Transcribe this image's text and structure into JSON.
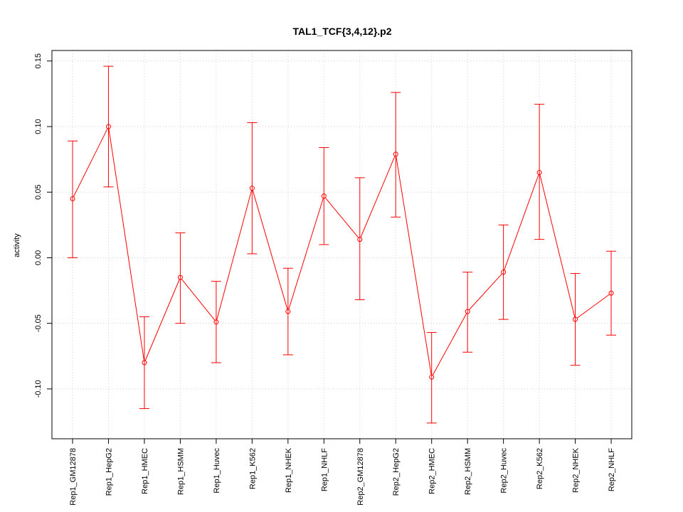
{
  "chart_data": {
    "type": "line",
    "title": "TAL1_TCF{3,4,12}.p2",
    "xlabel": "",
    "ylabel": "activity",
    "categories": [
      "Rep1_GM12878",
      "Rep1_HepG2",
      "Rep1_HMEC",
      "Rep1_HSMM",
      "Rep1_Huvec",
      "Rep1_K562",
      "Rep1_NHEK",
      "Rep1_NHLF",
      "Rep2_GM12878",
      "Rep2_HepG2",
      "Rep2_HMEC",
      "Rep2_HSMM",
      "Rep2_Huvec",
      "Rep2_K562",
      "Rep2_NHEK",
      "Rep2_NHLF"
    ],
    "series": [
      {
        "values": [
          0.045,
          0.1,
          -0.08,
          -0.015,
          -0.049,
          0.053,
          -0.041,
          0.047,
          0.014,
          0.079,
          -0.091,
          -0.041,
          -0.011,
          0.065,
          -0.047,
          -0.027
        ],
        "upper": [
          0.089,
          0.146,
          -0.045,
          0.019,
          -0.018,
          0.103,
          -0.008,
          0.084,
          0.061,
          0.126,
          -0.057,
          -0.011,
          0.025,
          0.117,
          -0.012,
          0.005
        ],
        "lower": [
          0.0,
          0.054,
          -0.115,
          -0.05,
          -0.08,
          0.003,
          -0.074,
          0.01,
          -0.032,
          0.031,
          -0.126,
          -0.072,
          -0.047,
          0.014,
          -0.082,
          -0.059
        ]
      }
    ],
    "yticks": [
      "-0.10",
      "-0.05",
      "0.00",
      "0.05",
      "0.10",
      "0.15"
    ],
    "ytick_values": [
      -0.1,
      -0.05,
      0.0,
      0.05,
      0.1,
      0.15
    ],
    "ylim": [
      -0.138,
      0.158
    ],
    "grid": true,
    "colors": {
      "series": "#ff0000",
      "grid": "#d3d3d3",
      "axis": "#000000"
    }
  }
}
